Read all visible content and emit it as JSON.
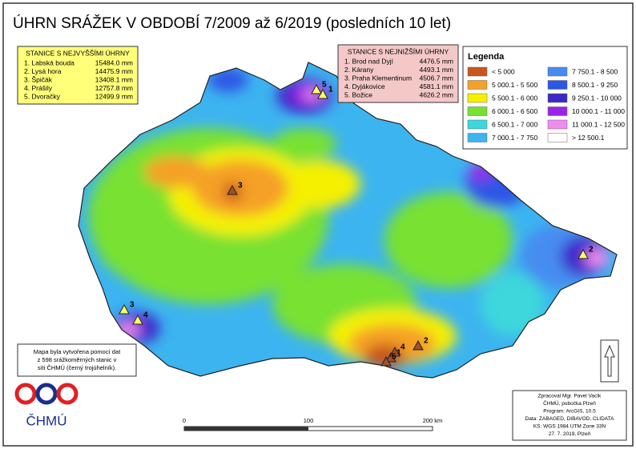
{
  "title": "ÚHRN SRÁŽEK V OBDOBÍ 7/2009 až 6/2019 (posledních 10 let)",
  "highest": {
    "title": "STANICE S NEJVYŠŠÍMI ÚHRNY",
    "rows": [
      [
        "1. Labská bouda",
        "15484.0 mm"
      ],
      [
        "2. Lysá hora",
        "14475.9 mm"
      ],
      [
        "3. Špičák",
        "13408.1 mm"
      ],
      [
        "4. Prášily",
        "12757.8 mm"
      ],
      [
        "5. Dvoračky",
        "12499.9 mm"
      ]
    ]
  },
  "lowest": {
    "title": "STANICE S NEJNIŽŠÍMI ÚHRNY",
    "rows": [
      [
        "1. Brod nad Dyjí",
        "4476.5 mm"
      ],
      [
        "2. Kárany",
        "4493.1 mm"
      ],
      [
        "3. Praha Klementinum",
        "4506.7 mm"
      ],
      [
        "4. Dyjákovice",
        "4581.1 mm"
      ],
      [
        "5. Božice",
        "4626.2 mm"
      ]
    ]
  },
  "legend": {
    "title": "Legenda",
    "items": [
      {
        "label": "< 5 000",
        "color": "#c8561e"
      },
      {
        "label": "5 000.1 - 5 500",
        "color": "#f5a028"
      },
      {
        "label": "5 500.1 - 6 000",
        "color": "#f5f000"
      },
      {
        "label": "6 000.1 - 6 500",
        "color": "#78e132"
      },
      {
        "label": "6 500.1 - 7 000",
        "color": "#3cd7dc"
      },
      {
        "label": "7 000.1 - 7 750",
        "color": "#3cb4f0"
      },
      {
        "label": "7 750.1 - 8 500",
        "color": "#468cf0"
      },
      {
        "label": "8 500.1 - 9 250",
        "color": "#2d55e6"
      },
      {
        "label": "9 250.1 - 10 000",
        "color": "#3c28c8"
      },
      {
        "label": "10 000.1 - 11 000",
        "color": "#9b23e6"
      },
      {
        "label": "11 000.1 - 12 500",
        "color": "#f08cf0"
      },
      {
        "label": "> 12 500.1",
        "color": "#ffffff"
      }
    ]
  },
  "note": [
    "Mapa byla vytvořena pomocí dat",
    "z 598 srážkoměrných stanic v",
    "síti ČHMÚ (černý trojúhelník)."
  ],
  "logo": "ČHMÚ",
  "scale": [
    "0",
    "100",
    "200 km"
  ],
  "credits": [
    "Zpracoval Mgr. Pavel Vacík",
    "ČHMÚ, pobočka Plzeň",
    "Program: ArcGIS, 10.5",
    "Data: ZABAGED, DIBAVOD, CLIDATA",
    "KS: WGS 1984 UTM Zone 33N",
    "27. 7. 2019, Plzeň"
  ],
  "markers_high": [
    "1",
    "2",
    "3",
    "4",
    "5"
  ],
  "markers_low": [
    "1",
    "2",
    "3",
    "4",
    "5"
  ]
}
